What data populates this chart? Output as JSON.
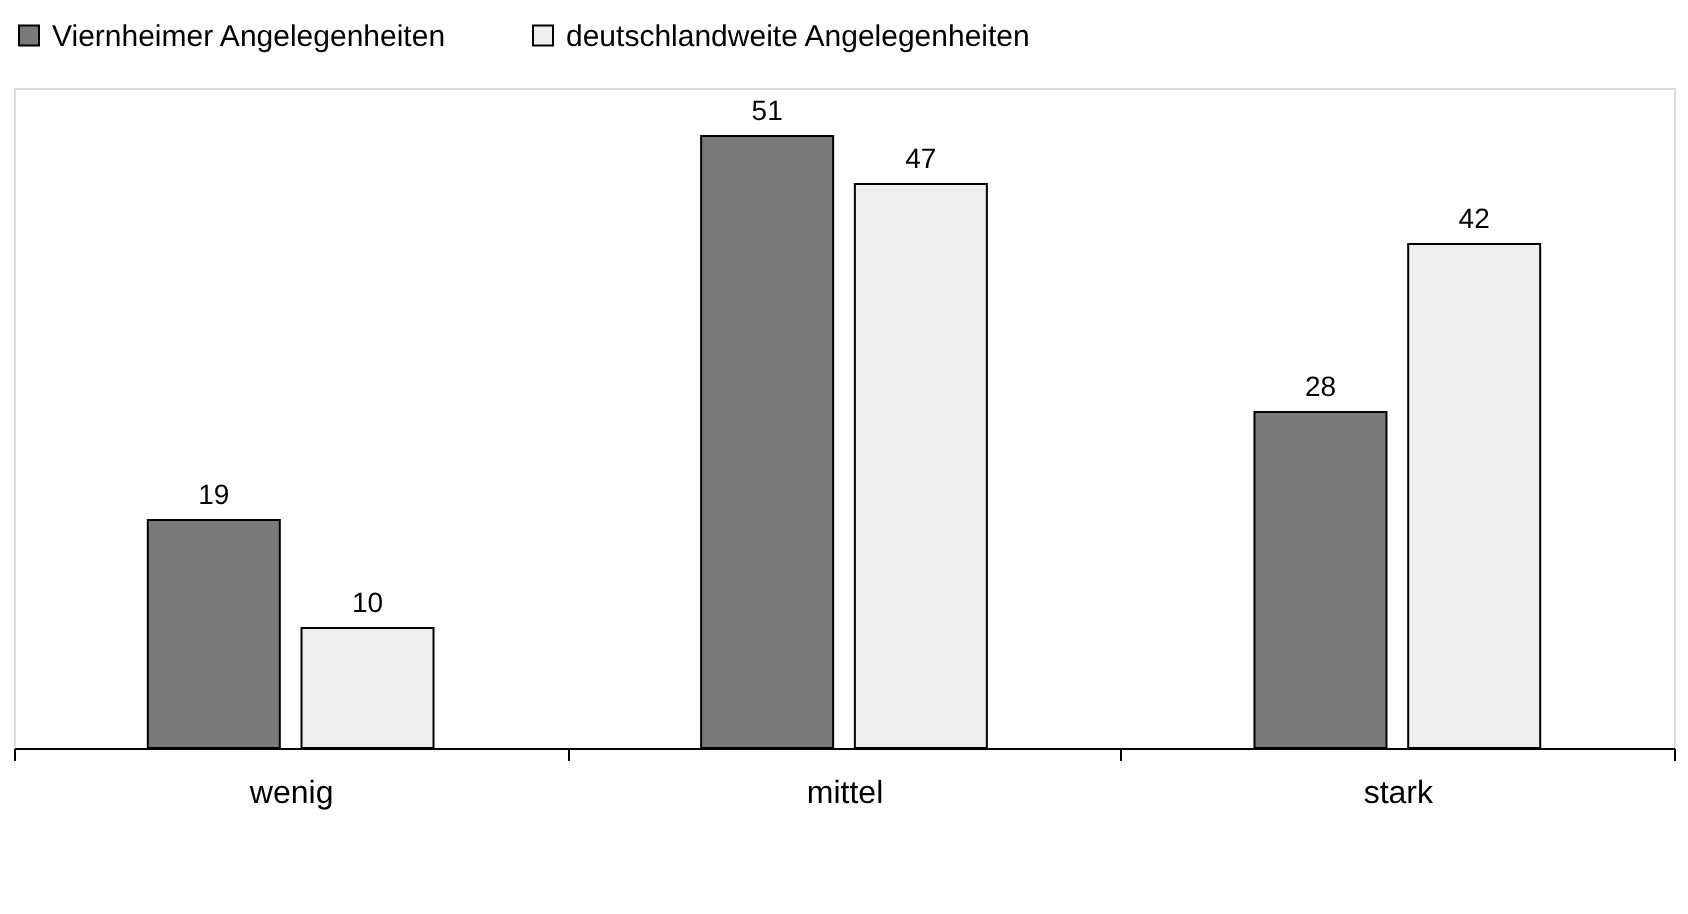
{
  "chart_data": {
    "type": "bar",
    "categories": [
      "wenig",
      "mittel",
      "stark"
    ],
    "series": [
      {
        "name": "Viernheimer Angelegenheiten",
        "color": "#7a7a7a",
        "values": [
          19,
          51,
          28
        ]
      },
      {
        "name": "deutschlandweite Angelegenheiten",
        "color": "#eeeeee",
        "values": [
          10,
          47,
          42
        ]
      }
    ],
    "data_labels": true,
    "legend": "top",
    "grid": false,
    "tick_labels": "x"
  }
}
